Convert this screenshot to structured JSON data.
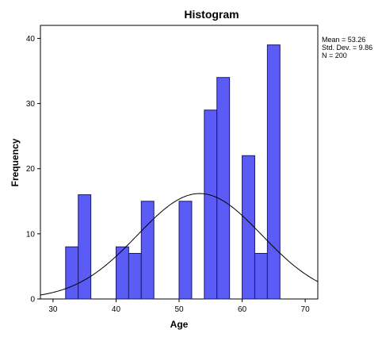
{
  "chart_data": {
    "type": "bar",
    "title": "Histogram",
    "xlabel": "Age",
    "ylabel": "Frequency",
    "xlim": [
      28,
      72
    ],
    "ylim": [
      0,
      42
    ],
    "x_ticks": [
      30,
      40,
      50,
      60,
      70
    ],
    "y_ticks": [
      0,
      10,
      20,
      30,
      40
    ],
    "bin_width": 2,
    "bins": [
      {
        "start": 32,
        "end": 34,
        "count": 8
      },
      {
        "start": 34,
        "end": 36,
        "count": 16
      },
      {
        "start": 40,
        "end": 42,
        "count": 8
      },
      {
        "start": 42,
        "end": 44,
        "count": 7
      },
      {
        "start": 44,
        "end": 46,
        "count": 15
      },
      {
        "start": 50,
        "end": 52,
        "count": 15
      },
      {
        "start": 54,
        "end": 56,
        "count": 29
      },
      {
        "start": 56,
        "end": 58,
        "count": 34
      },
      {
        "start": 60,
        "end": 62,
        "count": 22
      },
      {
        "start": 62,
        "end": 64,
        "count": 7
      },
      {
        "start": 64,
        "end": 66,
        "count": 39
      }
    ],
    "normal_curve": {
      "mean": 53.26,
      "sd": 9.86,
      "n": 200
    },
    "stats_text": [
      "Mean = 53.26",
      "Std. Dev. = 9.86",
      "N = 200"
    ],
    "legend_position": "right",
    "grid": false,
    "colors": {
      "bar_fill": "#5b5bf5",
      "bar_stroke": "#1a1a6e",
      "curve": "#000000",
      "plot_background": "#ffffff",
      "axis": "#000000"
    }
  }
}
